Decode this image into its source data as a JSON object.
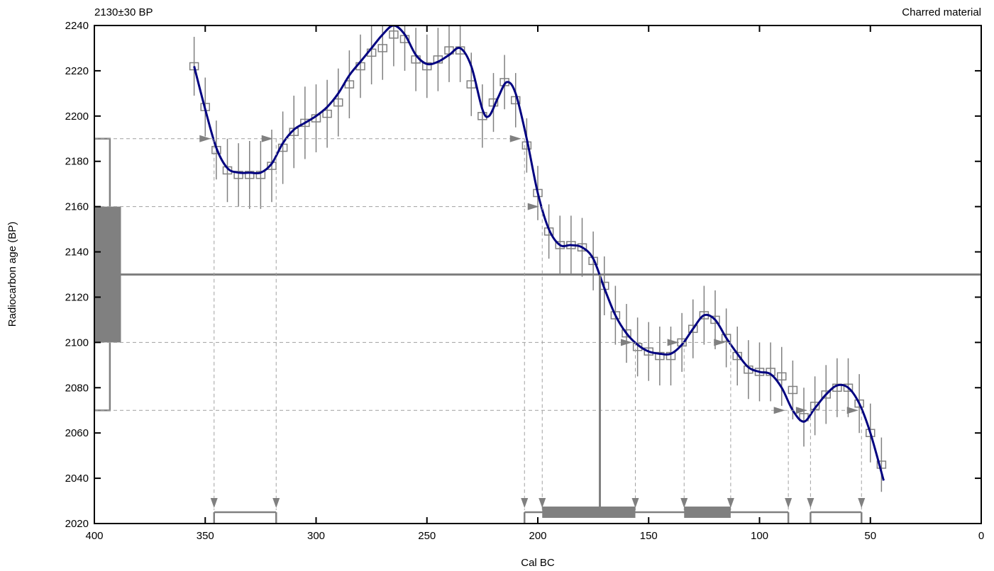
{
  "chart_data": {
    "type": "line",
    "title_left": "2130±30 BP",
    "title_right": "Charred material",
    "xlabel": "Cal BC",
    "ylabel": "Radiocarbon age (BP)",
    "xlim": [
      400,
      0
    ],
    "ylim": [
      2020,
      2240
    ],
    "x_ticks": [
      400,
      350,
      300,
      250,
      200,
      150,
      100,
      50,
      0
    ],
    "y_ticks": [
      2020,
      2040,
      2060,
      2080,
      2100,
      2120,
      2140,
      2160,
      2180,
      2200,
      2220,
      2240
    ],
    "measurement": {
      "age": 2130,
      "sigma": 30,
      "one_sigma": [
        2100,
        2160
      ],
      "two_sigma": [
        2070,
        2190
      ]
    },
    "median_cal_bc": 172,
    "calibration_curve": [
      {
        "x": 355,
        "y": 2222
      },
      {
        "x": 350,
        "y": 2203
      },
      {
        "x": 345,
        "y": 2186
      },
      {
        "x": 340,
        "y": 2177
      },
      {
        "x": 335,
        "y": 2175
      },
      {
        "x": 330,
        "y": 2175
      },
      {
        "x": 325,
        "y": 2175
      },
      {
        "x": 320,
        "y": 2179
      },
      {
        "x": 315,
        "y": 2188
      },
      {
        "x": 310,
        "y": 2194
      },
      {
        "x": 305,
        "y": 2197
      },
      {
        "x": 300,
        "y": 2200
      },
      {
        "x": 295,
        "y": 2204
      },
      {
        "x": 290,
        "y": 2210
      },
      {
        "x": 285,
        "y": 2218
      },
      {
        "x": 280,
        "y": 2224
      },
      {
        "x": 275,
        "y": 2230
      },
      {
        "x": 270,
        "y": 2236
      },
      {
        "x": 265,
        "y": 2240
      },
      {
        "x": 260,
        "y": 2236
      },
      {
        "x": 255,
        "y": 2227
      },
      {
        "x": 250,
        "y": 2223
      },
      {
        "x": 245,
        "y": 2224
      },
      {
        "x": 240,
        "y": 2227
      },
      {
        "x": 235,
        "y": 2230
      },
      {
        "x": 230,
        "y": 2222
      },
      {
        "x": 225,
        "y": 2203
      },
      {
        "x": 222,
        "y": 2200
      },
      {
        "x": 218,
        "y": 2208
      },
      {
        "x": 214,
        "y": 2215
      },
      {
        "x": 210,
        "y": 2210
      },
      {
        "x": 205,
        "y": 2190
      },
      {
        "x": 200,
        "y": 2166
      },
      {
        "x": 195,
        "y": 2150
      },
      {
        "x": 190,
        "y": 2143
      },
      {
        "x": 185,
        "y": 2143
      },
      {
        "x": 180,
        "y": 2142
      },
      {
        "x": 175,
        "y": 2137
      },
      {
        "x": 170,
        "y": 2124
      },
      {
        "x": 165,
        "y": 2112
      },
      {
        "x": 160,
        "y": 2104
      },
      {
        "x": 155,
        "y": 2099
      },
      {
        "x": 150,
        "y": 2096
      },
      {
        "x": 145,
        "y": 2095
      },
      {
        "x": 140,
        "y": 2095
      },
      {
        "x": 135,
        "y": 2099
      },
      {
        "x": 130,
        "y": 2106
      },
      {
        "x": 125,
        "y": 2112
      },
      {
        "x": 120,
        "y": 2110
      },
      {
        "x": 115,
        "y": 2102
      },
      {
        "x": 110,
        "y": 2095
      },
      {
        "x": 105,
        "y": 2089
      },
      {
        "x": 100,
        "y": 2087
      },
      {
        "x": 95,
        "y": 2086
      },
      {
        "x": 90,
        "y": 2080
      },
      {
        "x": 85,
        "y": 2070
      },
      {
        "x": 80,
        "y": 2065
      },
      {
        "x": 75,
        "y": 2071
      },
      {
        "x": 70,
        "y": 2077
      },
      {
        "x": 65,
        "y": 2081
      },
      {
        "x": 60,
        "y": 2080
      },
      {
        "x": 55,
        "y": 2073
      },
      {
        "x": 50,
        "y": 2060
      },
      {
        "x": 44,
        "y": 2039
      }
    ],
    "decadal_data": [
      {
        "x": 355,
        "y": 2222,
        "err": 13
      },
      {
        "x": 350,
        "y": 2204,
        "err": 13
      },
      {
        "x": 345,
        "y": 2185,
        "err": 13
      },
      {
        "x": 340,
        "y": 2176,
        "err": 14
      },
      {
        "x": 335,
        "y": 2174,
        "err": 14
      },
      {
        "x": 330,
        "y": 2174,
        "err": 15
      },
      {
        "x": 325,
        "y": 2174,
        "err": 15
      },
      {
        "x": 320,
        "y": 2178,
        "err": 16
      },
      {
        "x": 315,
        "y": 2186,
        "err": 16
      },
      {
        "x": 310,
        "y": 2193,
        "err": 16
      },
      {
        "x": 305,
        "y": 2197,
        "err": 16
      },
      {
        "x": 300,
        "y": 2199,
        "err": 15
      },
      {
        "x": 295,
        "y": 2201,
        "err": 15
      },
      {
        "x": 290,
        "y": 2206,
        "err": 15
      },
      {
        "x": 285,
        "y": 2214,
        "err": 15
      },
      {
        "x": 280,
        "y": 2222,
        "err": 14
      },
      {
        "x": 275,
        "y": 2228,
        "err": 14
      },
      {
        "x": 270,
        "y": 2230,
        "err": 14
      },
      {
        "x": 265,
        "y": 2236,
        "err": 14
      },
      {
        "x": 260,
        "y": 2234,
        "err": 14
      },
      {
        "x": 255,
        "y": 2225,
        "err": 14
      },
      {
        "x": 250,
        "y": 2222,
        "err": 14
      },
      {
        "x": 245,
        "y": 2225,
        "err": 14
      },
      {
        "x": 240,
        "y": 2229,
        "err": 14
      },
      {
        "x": 235,
        "y": 2229,
        "err": 14
      },
      {
        "x": 230,
        "y": 2214,
        "err": 14
      },
      {
        "x": 225,
        "y": 2200,
        "err": 14
      },
      {
        "x": 220,
        "y": 2206,
        "err": 13
      },
      {
        "x": 215,
        "y": 2215,
        "err": 12
      },
      {
        "x": 210,
        "y": 2207,
        "err": 12
      },
      {
        "x": 205,
        "y": 2187,
        "err": 12
      },
      {
        "x": 200,
        "y": 2166,
        "err": 12
      },
      {
        "x": 195,
        "y": 2149,
        "err": 12
      },
      {
        "x": 190,
        "y": 2143,
        "err": 13
      },
      {
        "x": 185,
        "y": 2143,
        "err": 13
      },
      {
        "x": 180,
        "y": 2142,
        "err": 13
      },
      {
        "x": 175,
        "y": 2136,
        "err": 13
      },
      {
        "x": 170,
        "y": 2125,
        "err": 13
      },
      {
        "x": 165,
        "y": 2112,
        "err": 13
      },
      {
        "x": 160,
        "y": 2104,
        "err": 13
      },
      {
        "x": 155,
        "y": 2098,
        "err": 13
      },
      {
        "x": 150,
        "y": 2096,
        "err": 13
      },
      {
        "x": 145,
        "y": 2094,
        "err": 13
      },
      {
        "x": 140,
        "y": 2094,
        "err": 13
      },
      {
        "x": 135,
        "y": 2100,
        "err": 13
      },
      {
        "x": 130,
        "y": 2106,
        "err": 13
      },
      {
        "x": 125,
        "y": 2112,
        "err": 13
      },
      {
        "x": 120,
        "y": 2110,
        "err": 13
      },
      {
        "x": 115,
        "y": 2102,
        "err": 13
      },
      {
        "x": 110,
        "y": 2094,
        "err": 13
      },
      {
        "x": 105,
        "y": 2088,
        "err": 13
      },
      {
        "x": 100,
        "y": 2087,
        "err": 13
      },
      {
        "x": 95,
        "y": 2087,
        "err": 13
      },
      {
        "x": 90,
        "y": 2085,
        "err": 13
      },
      {
        "x": 85,
        "y": 2079,
        "err": 13
      },
      {
        "x": 80,
        "y": 2067,
        "err": 13
      },
      {
        "x": 75,
        "y": 2072,
        "err": 13
      },
      {
        "x": 70,
        "y": 2077,
        "err": 13
      },
      {
        "x": 65,
        "y": 2080,
        "err": 13
      },
      {
        "x": 60,
        "y": 2080,
        "err": 13
      },
      {
        "x": 55,
        "y": 2073,
        "err": 13
      },
      {
        "x": 50,
        "y": 2060,
        "err": 13
      },
      {
        "x": 45,
        "y": 2046,
        "err": 12
      }
    ],
    "one_sigma_ranges": [
      [
        198,
        156
      ],
      [
        134,
        113
      ]
    ],
    "two_sigma_ranges": [
      [
        346,
        318
      ],
      [
        206,
        87
      ],
      [
        77,
        54
      ]
    ],
    "intercepts": [
      {
        "age": 2190,
        "x": [
          346,
          318,
          206
        ]
      },
      {
        "age": 2160,
        "x": [
          198
        ]
      },
      {
        "age": 2100,
        "x": [
          156,
          134,
          113
        ]
      },
      {
        "age": 2070,
        "x": [
          87,
          77,
          54
        ]
      }
    ],
    "arrows": [
      {
        "age": 2190,
        "x": [
          350,
          322,
          210
        ]
      },
      {
        "age": 2160,
        "x": [
          202
        ]
      },
      {
        "age": 2100,
        "x": [
          160,
          139,
          118
        ]
      },
      {
        "age": 2070,
        "x": [
          91,
          81,
          58
        ]
      }
    ],
    "colors": {
      "curve": "#000080",
      "data": "#808080",
      "range": "#808080",
      "dashed": "#a0a0a0"
    }
  }
}
